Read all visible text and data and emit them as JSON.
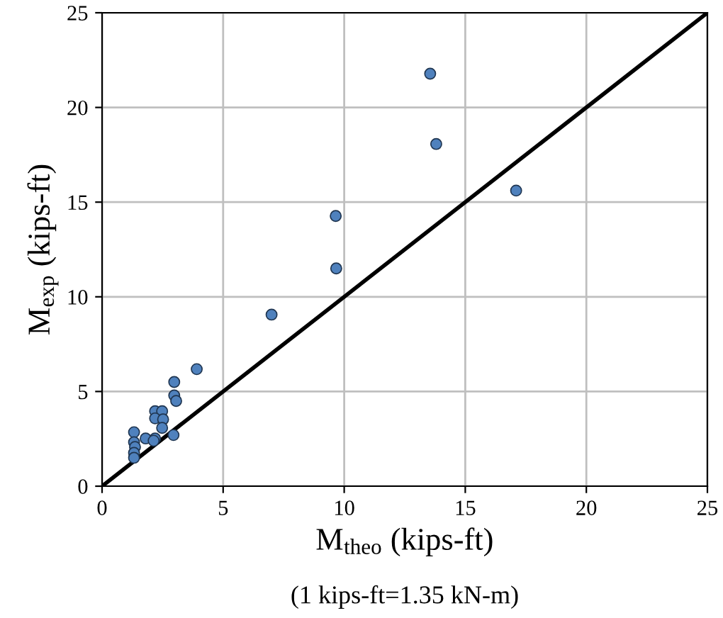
{
  "chart_data": {
    "type": "scatter",
    "xlabel": "M$_{theo}$ (kips-ft)",
    "ylabel": "M$_{exp}$ (kips-ft)",
    "annotations": [
      "(1 kips-ft=1.35 kN-m)"
    ],
    "xlim": [
      0,
      25
    ],
    "ylim": [
      0,
      25
    ],
    "xticks": [
      0,
      5,
      10,
      15,
      20,
      25
    ],
    "yticks": [
      0,
      5,
      10,
      15,
      20,
      25
    ],
    "grid": true,
    "marker": "circle",
    "series": [
      {
        "color": "#4f81bd",
        "x": [
          3.91,
          2.98,
          2.98,
          3.06,
          2.19,
          2.48,
          2.19,
          2.52,
          2.48,
          1.32,
          1.8,
          2.19,
          2.13,
          2.95,
          1.32,
          1.36,
          1.32,
          1.32,
          13.55,
          13.8,
          17.1,
          9.65,
          9.67,
          7.0
        ],
        "values": [
          6.18,
          5.5,
          4.79,
          4.5,
          3.96,
          3.96,
          3.58,
          3.53,
          3.08,
          2.85,
          2.52,
          2.52,
          2.4,
          2.7,
          2.32,
          2.07,
          1.76,
          1.5,
          21.78,
          18.07,
          15.61,
          14.27,
          11.5,
          9.06
        ]
      },
      {
        "type": "line",
        "color": "#000000",
        "marker": "none",
        "line_style": "solid",
        "x": [
          0,
          25
        ],
        "values": [
          0,
          25
        ]
      }
    ]
  }
}
